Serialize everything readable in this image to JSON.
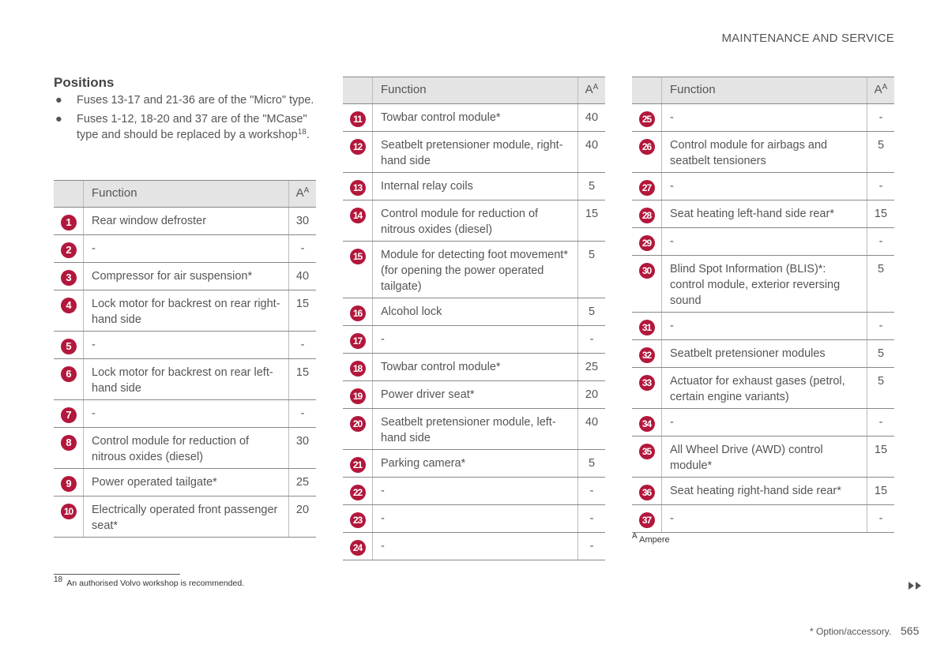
{
  "header": {
    "section": "MAINTENANCE AND SERVICE"
  },
  "positions": {
    "title": "Positions",
    "bullets": [
      {
        "text": "Fuses 13-17 and 21-36 are of the \"Micro\" type."
      },
      {
        "text": "Fuses 1-12, 18-20 and 37 are of the \"MCase\" type and should be replaced by a workshop",
        "footnote_ref": "18",
        "end": "."
      }
    ]
  },
  "tables": [
    {
      "header": {
        "function": "Function",
        "amps": "A",
        "amps_note": "A"
      },
      "rows": [
        {
          "number": 1,
          "function": "Rear window defroster",
          "amps": 30
        },
        {
          "number": 2,
          "function": "-",
          "amps": "-"
        },
        {
          "number": 3,
          "function": "Compressor for air suspension*",
          "amps": 40
        },
        {
          "number": 4,
          "function": "Lock motor for backrest on rear right-hand side",
          "amps": 15
        },
        {
          "number": 5,
          "function": "-",
          "amps": "-"
        },
        {
          "number": 6,
          "function": "Lock motor for backrest on rear left-hand side",
          "amps": 15
        },
        {
          "number": 7,
          "function": "-",
          "amps": "-"
        },
        {
          "number": 8,
          "function": "Control module for reduction of nitrous oxides (diesel)",
          "amps": 30
        },
        {
          "number": 9,
          "function": "Power operated tailgate*",
          "amps": 25
        },
        {
          "number": 10,
          "function": "Electrically operated front passen­ger seat*",
          "amps": 20
        }
      ]
    },
    {
      "header": {
        "function": "Function",
        "amps": "A",
        "amps_note": "A"
      },
      "rows": [
        {
          "number": 11,
          "function": "Towbar control module*",
          "amps": 40
        },
        {
          "number": 12,
          "function": "Seatbelt pretensioner module, right-hand side",
          "amps": 40
        },
        {
          "number": 13,
          "function": "Internal relay coils",
          "amps": 5
        },
        {
          "number": 14,
          "function": "Control module for reduction of nitrous oxides (diesel)",
          "amps": 15
        },
        {
          "number": 15,
          "function": "Module for detecting foot move­ment* (for opening the power oper­ated tailgate)",
          "amps": 5
        },
        {
          "number": 16,
          "function": "Alcohol lock",
          "amps": 5
        },
        {
          "number": 17,
          "function": "-",
          "amps": "-"
        },
        {
          "number": 18,
          "function": "Towbar control module*",
          "amps": 25
        },
        {
          "number": 19,
          "function": "Power driver seat*",
          "amps": 20
        },
        {
          "number": 20,
          "function": "Seatbelt pretensioner module, left-hand side",
          "amps": 40
        },
        {
          "number": 21,
          "function": "Parking camera*",
          "amps": 5
        },
        {
          "number": 22,
          "function": "-",
          "amps": "-"
        },
        {
          "number": 23,
          "function": "-",
          "amps": "-"
        },
        {
          "number": 24,
          "function": "-",
          "amps": "-"
        }
      ]
    },
    {
      "header": {
        "function": "Function",
        "amps": "A",
        "amps_note": "A"
      },
      "rows": [
        {
          "number": 25,
          "function": "-",
          "amps": "-"
        },
        {
          "number": 26,
          "function": "Control module for airbags and seatbelt tensioners",
          "amps": 5
        },
        {
          "number": 27,
          "function": "-",
          "amps": "-"
        },
        {
          "number": 28,
          "function": "Seat heating left-hand side rear*",
          "amps": 15
        },
        {
          "number": 29,
          "function": "-",
          "amps": "-"
        },
        {
          "number": 30,
          "function": "Blind Spot Information (BLIS)*: control module, exterior reversing sound",
          "amps": 5
        },
        {
          "number": 31,
          "function": "-",
          "amps": "-"
        },
        {
          "number": 32,
          "function": "Seatbelt pretensioner modules",
          "amps": 5
        },
        {
          "number": 33,
          "function": "Actuator for exhaust gases (petrol, certain engine variants)",
          "amps": 5
        },
        {
          "number": 34,
          "function": "-",
          "amps": "-"
        },
        {
          "number": 35,
          "function": "All Wheel Drive (AWD) control module*",
          "amps": 15
        },
        {
          "number": 36,
          "function": "Seat heating right-hand side rear*",
          "amps": 15
        },
        {
          "number": 37,
          "function": "-",
          "amps": "-"
        }
      ],
      "note": {
        "mark": "A",
        "text": "Ampere"
      }
    }
  ],
  "footnote": {
    "number": "18",
    "text": "An authorised Volvo workshop is recommended."
  },
  "footer": {
    "note": "* Option/accessory.",
    "page": "565"
  }
}
